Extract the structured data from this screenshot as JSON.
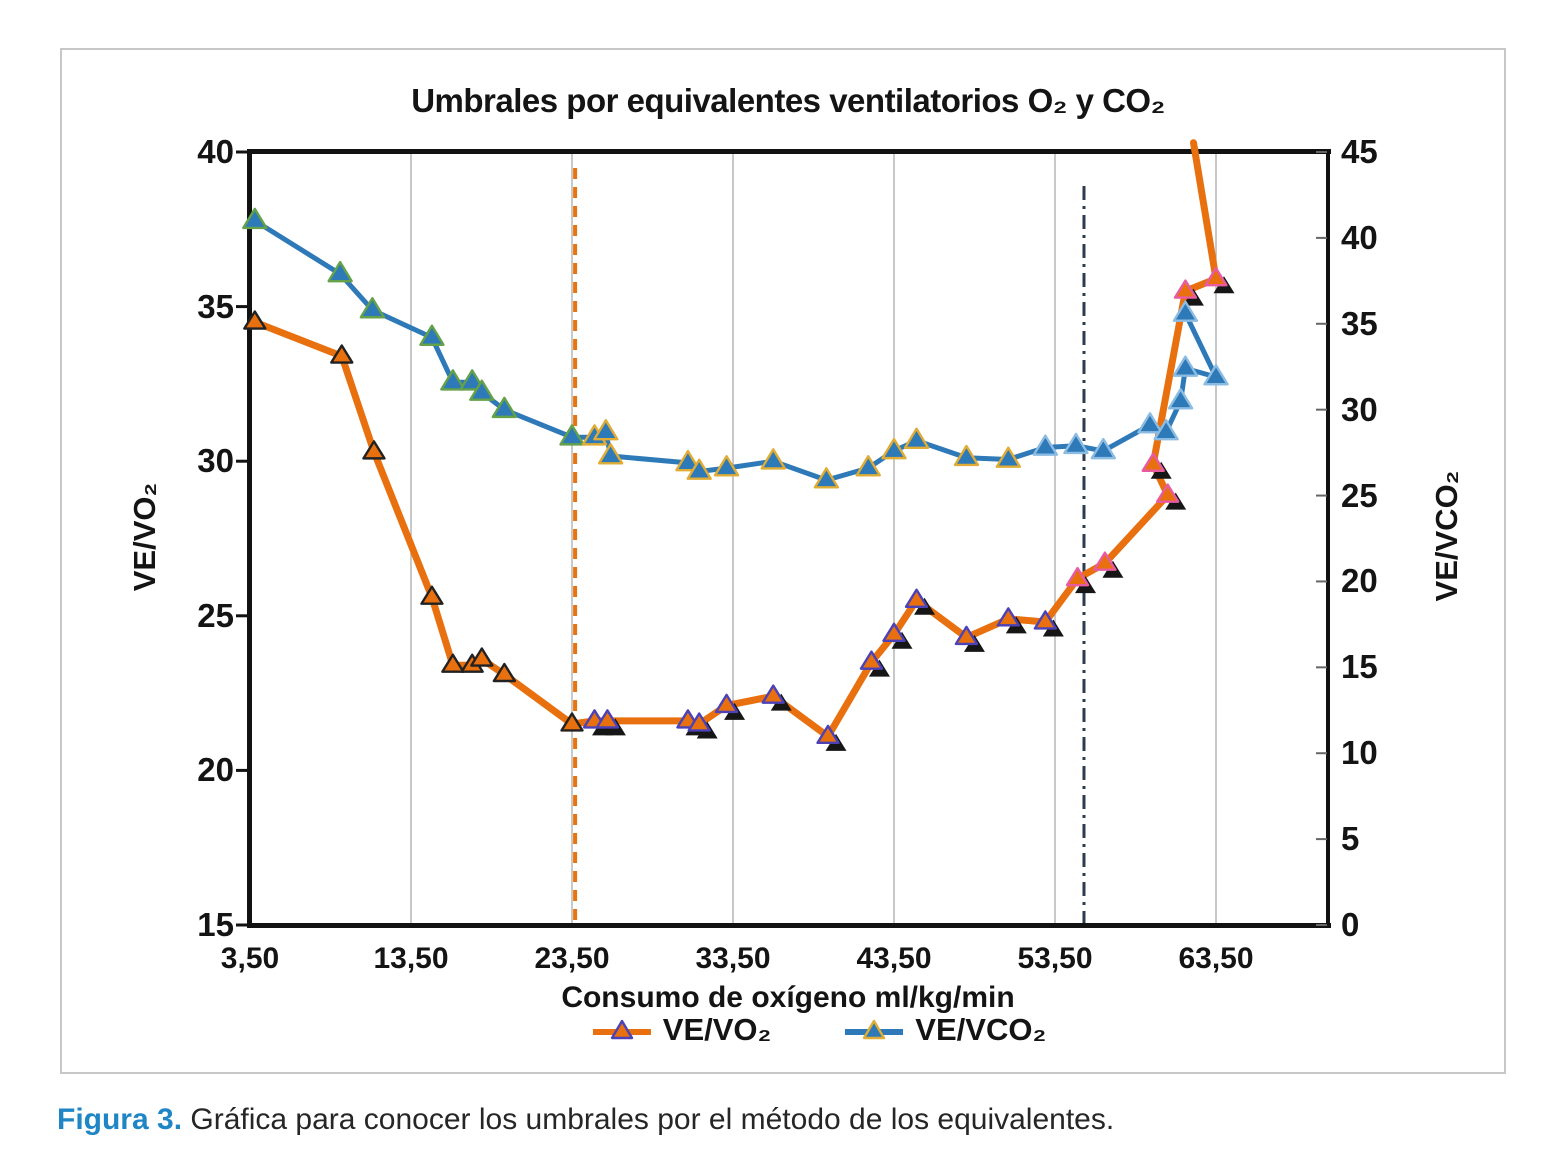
{
  "figure": {
    "caption_label": "Figura 3.",
    "caption_text": " Gráfica para conocer los umbrales por el método de los equivalentes."
  },
  "chart_data": {
    "type": "line",
    "title": "Umbrales por equivalentes ventilatorios O₂ y CO₂",
    "xlabel": "Consumo de oxígeno ml/kg/min",
    "ylabel_left": "VE/VO₂",
    "ylabel_right": "VE/VCO₂",
    "x_tick_labels": [
      "3,50",
      "13,50",
      "23,50",
      "33,50",
      "43,50",
      "53,50",
      "63,50"
    ],
    "x_tick_values": [
      3.5,
      13.5,
      23.5,
      33.5,
      43.5,
      53.5,
      63.5
    ],
    "xlim": [
      3.5,
      70.4
    ],
    "y_left": {
      "ticks": [
        40,
        35,
        30,
        25,
        20,
        15
      ],
      "lim": [
        15,
        40
      ]
    },
    "y_right": {
      "ticks": [
        45,
        40,
        35,
        30,
        25,
        20,
        15,
        10,
        5,
        0
      ],
      "lim": [
        0,
        45
      ]
    },
    "grid": "vertical-gray",
    "legend_position": "bottom",
    "colors": {
      "grid": "#ababab",
      "axis": "#121212",
      "threshold_o2": "#e8730f",
      "threshold_co2": "#2e3a50",
      "marker_shadow": "#161616"
    },
    "thresholds": [
      {
        "x": 23.6,
        "style": "dashed",
        "color": "#e8730f"
      },
      {
        "x": 53.3,
        "style": "dash-dot",
        "color": "#2e3a50"
      }
    ],
    "series": [
      {
        "name": "VE/VO₂",
        "axis": "left",
        "color": "#e8700f",
        "marker": "triangle",
        "points": [
          [
            3.8,
            34.5
          ],
          [
            9.2,
            33.4
          ],
          [
            11.2,
            30.3
          ],
          [
            14.8,
            25.6
          ],
          [
            16.1,
            23.4
          ],
          [
            17.3,
            23.4
          ],
          [
            17.9,
            23.6
          ],
          [
            19.3,
            23.1
          ],
          [
            23.5,
            21.5
          ],
          [
            24.9,
            21.6
          ],
          [
            25.7,
            21.6
          ],
          [
            30.7,
            21.6
          ],
          [
            31.4,
            21.5
          ],
          [
            33.1,
            22.1
          ],
          [
            36.0,
            22.4
          ],
          [
            39.4,
            21.1
          ],
          [
            42.1,
            23.5
          ],
          [
            43.5,
            24.4
          ],
          [
            44.9,
            25.5
          ],
          [
            48.0,
            24.3
          ],
          [
            50.6,
            24.9
          ],
          [
            52.9,
            24.8
          ],
          [
            54.9,
            26.2
          ],
          [
            56.6,
            26.7
          ],
          [
            60.5,
            28.9
          ],
          [
            59.6,
            29.9
          ],
          [
            61.6,
            35.5
          ],
          [
            63.5,
            35.9
          ],
          [
            62.1,
            40.3
          ]
        ],
        "marker_phases": [
          {
            "to": 8,
            "edge": "#222222",
            "shadow": false
          },
          {
            "to": 21,
            "edge": "#4b42b8",
            "shadow": true
          },
          {
            "to": 27,
            "edge": "#e85ba0",
            "shadow": true
          },
          {
            "to": 28,
            "edge": "none",
            "shadow": false
          }
        ]
      },
      {
        "name": "VE/VCO₂",
        "axis": "right",
        "color": "#2e79b8",
        "marker": "triangle",
        "points": [
          [
            3.8,
            41.0
          ],
          [
            9.1,
            37.9
          ],
          [
            11.1,
            35.8
          ],
          [
            14.8,
            34.2
          ],
          [
            16.1,
            31.6
          ],
          [
            17.3,
            31.6
          ],
          [
            17.9,
            31.0
          ],
          [
            19.3,
            30.0
          ],
          [
            23.5,
            28.4
          ],
          [
            24.9,
            28.4
          ],
          [
            25.6,
            28.7
          ],
          [
            25.9,
            27.3
          ],
          [
            30.7,
            26.9
          ],
          [
            31.4,
            26.4
          ],
          [
            33.1,
            26.6
          ],
          [
            36.0,
            27.0
          ],
          [
            39.3,
            25.9
          ],
          [
            41.9,
            26.6
          ],
          [
            43.5,
            27.6
          ],
          [
            44.9,
            28.2
          ],
          [
            48.0,
            27.2
          ],
          [
            50.6,
            27.1
          ],
          [
            52.9,
            27.8
          ],
          [
            54.8,
            27.9
          ],
          [
            56.5,
            27.6
          ],
          [
            59.4,
            29.1
          ],
          [
            60.4,
            28.7
          ],
          [
            61.3,
            30.5
          ],
          [
            61.6,
            32.4
          ],
          [
            63.5,
            31.9
          ],
          [
            61.6,
            35.6
          ]
        ],
        "marker_phases": [
          {
            "to": 8,
            "edge": "#63a14a",
            "shadow": false
          },
          {
            "to": 21,
            "edge": "#dfac35",
            "shadow": false
          },
          {
            "to": 30,
            "edge": "#8cbce2",
            "shadow": false
          }
        ]
      }
    ]
  }
}
